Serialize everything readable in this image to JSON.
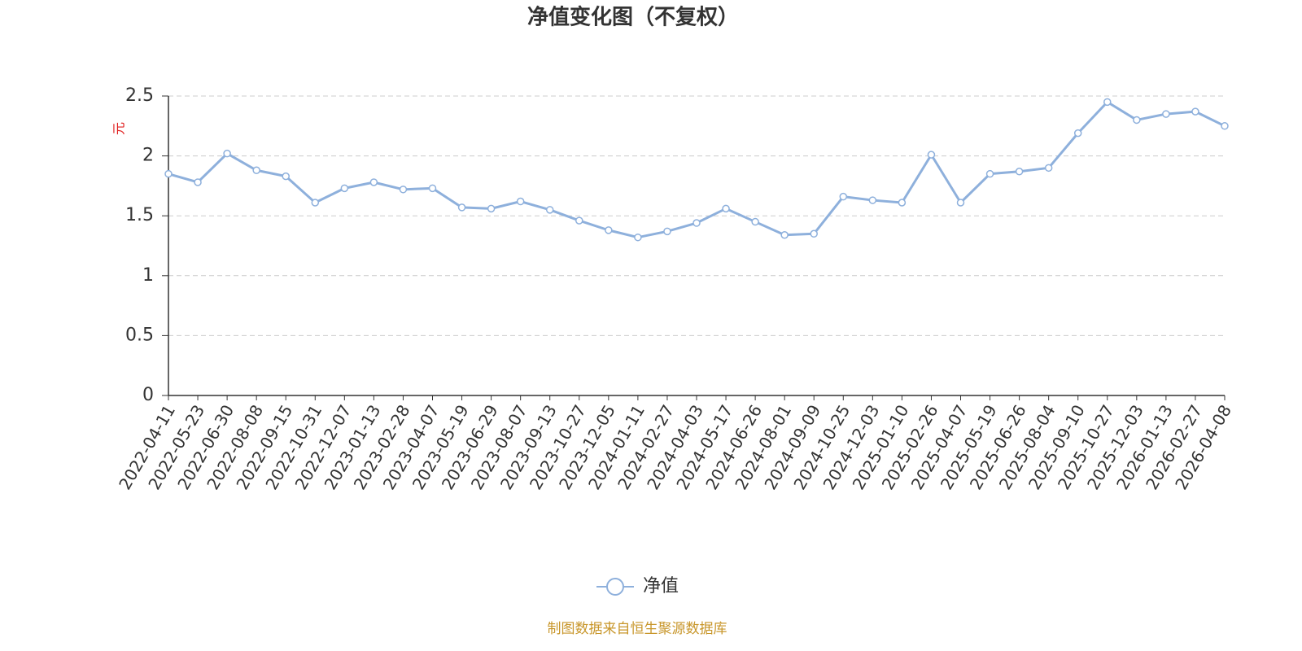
{
  "chart_data": {
    "type": "line",
    "title": "净值变化图（不复权）",
    "y_label": "元",
    "x": [
      "2022-04-11",
      "2022-05-23",
      "2022-06-30",
      "2022-08-08",
      "2022-09-15",
      "2022-10-31",
      "2022-12-07",
      "2023-01-13",
      "2023-02-28",
      "2023-04-07",
      "2023-05-19",
      "2023-06-29",
      "2023-08-07",
      "2023-09-13",
      "2023-10-27",
      "2023-12-05",
      "2024-01-11",
      "2024-02-27",
      "2024-04-03",
      "2024-05-17",
      "2024-06-26",
      "2024-08-01",
      "2024-09-09",
      "2024-10-25",
      "2024-12-03",
      "2025-01-10",
      "2025-02-26",
      "2025-04-07",
      "2025-05-19",
      "2025-06-26",
      "2025-08-04",
      "2025-09-10",
      "2025-10-27",
      "2025-12-03",
      "2026-01-13",
      "2026-02-27",
      "2026-04-08"
    ],
    "series": [
      {
        "name": "净值",
        "color": "#8eb0dc",
        "values": [
          1.85,
          1.78,
          2.02,
          1.88,
          1.83,
          1.61,
          1.73,
          1.78,
          1.72,
          1.73,
          1.57,
          1.56,
          1.62,
          1.55,
          1.46,
          1.38,
          1.32,
          1.37,
          1.44,
          1.56,
          1.45,
          1.34,
          1.35,
          1.66,
          1.63,
          1.61,
          2.01,
          1.61,
          1.85,
          1.87,
          1.9,
          2.19,
          2.45,
          2.3,
          2.35,
          2.37,
          2.25
        ]
      }
    ],
    "ylim": [
      0,
      2.5
    ],
    "yticks": [
      0,
      0.5,
      1,
      1.5,
      2,
      2.5
    ],
    "grid": true,
    "source": "制图数据来自恒生聚源数据库"
  }
}
